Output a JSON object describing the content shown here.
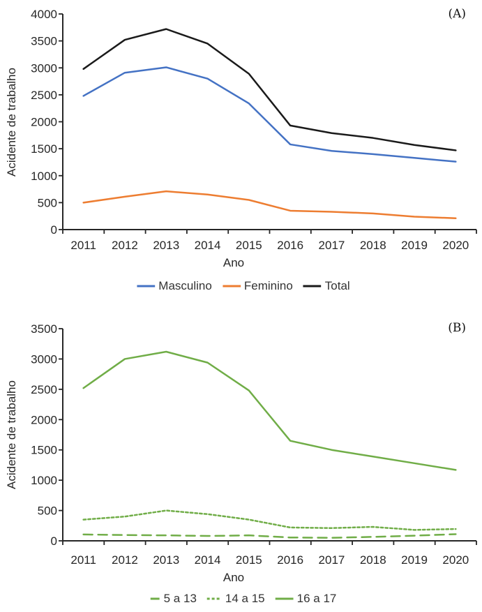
{
  "colors": {
    "axis": "#262626",
    "text": "#262626",
    "blue": "#4472C4",
    "orange": "#ED7D31",
    "black": "#1A1A1A",
    "green": "#70AD47"
  },
  "chart_data": [
    {
      "type": "line",
      "panel_label": "(A)",
      "title": "",
      "xlabel": "Ano",
      "ylabel": "Acidente de trabalho",
      "x": [
        2011,
        2012,
        2013,
        2014,
        2015,
        2016,
        2017,
        2018,
        2019,
        2020
      ],
      "ylim": [
        0,
        4000
      ],
      "ytick_step": 500,
      "grid": false,
      "legend_position": "bottom",
      "series": [
        {
          "name": "Masculino",
          "color": "#4472C4",
          "dash": "solid",
          "values": [
            2480,
            2910,
            3010,
            2800,
            2340,
            1580,
            1460,
            1400,
            1330,
            1260
          ]
        },
        {
          "name": "Feminino",
          "color": "#ED7D31",
          "dash": "solid",
          "values": [
            500,
            610,
            710,
            650,
            550,
            350,
            330,
            300,
            240,
            210
          ]
        },
        {
          "name": "Total",
          "color": "#1A1A1A",
          "dash": "solid",
          "values": [
            2980,
            3520,
            3720,
            3450,
            2890,
            1930,
            1790,
            1700,
            1570,
            1470
          ]
        }
      ]
    },
    {
      "type": "line",
      "panel_label": "(B)",
      "title": "",
      "xlabel": "Ano",
      "ylabel": "Acidente de trabalho",
      "x": [
        2011,
        2012,
        2013,
        2014,
        2015,
        2016,
        2017,
        2018,
        2019,
        2020
      ],
      "ylim": [
        0,
        3500
      ],
      "ytick_step": 500,
      "grid": false,
      "legend_position": "bottom",
      "series": [
        {
          "name": "5 a 13",
          "color": "#70AD47",
          "dash": "long-dash",
          "values": [
            105,
            95,
            90,
            80,
            90,
            55,
            50,
            65,
            85,
            110
          ]
        },
        {
          "name": "14 a 15",
          "color": "#70AD47",
          "dash": "dot",
          "values": [
            350,
            400,
            500,
            440,
            350,
            220,
            210,
            230,
            180,
            195
          ]
        },
        {
          "name": "16 a 17",
          "color": "#70AD47",
          "dash": "solid",
          "values": [
            2520,
            3000,
            3120,
            2940,
            2480,
            1650,
            1500,
            1390,
            1280,
            1170
          ]
        }
      ]
    }
  ]
}
